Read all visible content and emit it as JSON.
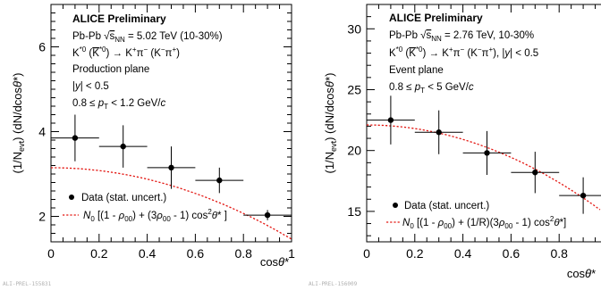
{
  "chart_data": [
    {
      "type": "scatter",
      "xlabel": "cosθ*",
      "ylabel": "(1/N_evt) (dN/dcosθ*)",
      "xlim": [
        0,
        1
      ],
      "ylim": [
        1.4,
        7.0
      ],
      "xticks": [
        0,
        0.2,
        0.4,
        0.6,
        0.8,
        1
      ],
      "xtick_labels": [
        "0",
        "0.2",
        "0.4",
        "0.6",
        "0.8",
        "1"
      ],
      "yticks": [
        2,
        4,
        6
      ],
      "ytick_labels": [
        "2",
        "4",
        "6"
      ],
      "title": "ALICE Preliminary",
      "annotations": [
        "Pb-Pb √sNN = 5.02 TeV (10-30%)",
        "K*0 (K̄*0) → K+π− (K−π+)",
        "Production plane",
        "|y| < 0.5",
        "0.8 ≤ pT < 1.2 GeV/c"
      ],
      "series": [
        {
          "name": "Data (stat. uncert.)",
          "x": [
            0.1,
            0.3,
            0.5,
            0.7,
            0.9
          ],
          "xerr": [
            0.1,
            0.1,
            0.1,
            0.1,
            0.1
          ],
          "y": [
            3.85,
            3.65,
            3.15,
            2.85,
            2.03
          ],
          "yerr": [
            0.55,
            0.5,
            0.5,
            0.3,
            0.12
          ]
        },
        {
          "name": "N0 [(1 - ρ00) + (3ρ00 - 1) cos²θ* ]",
          "fit": {
            "N0": 3.88,
            "rho00": 0.1886
          }
        }
      ],
      "legend_position": "bottom-left",
      "footer": "ALI-PREL-155831"
    },
    {
      "type": "scatter",
      "xlabel": "cosθ*",
      "ylabel": "(1/N_evt) (dN/dcosθ*)",
      "xlim": [
        0,
        1
      ],
      "ylim": [
        12.5,
        32.0
      ],
      "xticks": [
        0,
        0.2,
        0.4,
        0.6,
        0.8
      ],
      "xtick_labels": [
        "0",
        "0.2",
        "0.4",
        "0.6",
        "0.8"
      ],
      "yticks": [
        15,
        20,
        25,
        30
      ],
      "ytick_labels": [
        "15",
        "20",
        "25",
        "30"
      ],
      "title": "ALICE Preliminary",
      "annotations": [
        "Pb-Pb √sNN = 2.76 TeV, 10-30%",
        "K*0 (K̄*0) → K+π− (K−π+), |y| < 0.5",
        "Event plane",
        "0.8 ≤ pT < 5 GeV/c"
      ],
      "series": [
        {
          "name": "Data (stat. uncert.)",
          "x": [
            0.1,
            0.3,
            0.5,
            0.7,
            0.9
          ],
          "xerr": [
            0.1,
            0.1,
            0.1,
            0.1,
            0.1
          ],
          "y": [
            22.5,
            21.5,
            19.8,
            18.2,
            16.3
          ],
          "yerr": [
            2.0,
            1.8,
            1.8,
            1.7,
            1.5
          ]
        },
        {
          "name": "N0 [(1 - ρ00) + (1/R)(3ρ00 - 1) cos²θ* ]",
          "fit": {
            "N0": 22.1,
            "coef": -7.4
          }
        }
      ],
      "legend_position": "bottom-left",
      "footer": "ALI-PREL-156009"
    }
  ],
  "text": {
    "p1": {
      "ylabel": "(1/Nevt) (dN/dcosθ*)",
      "xlabel": "cosθ*",
      "title": "ALICE Preliminary",
      "l1a": "Pb-Pb ",
      "l1b": "s",
      "l1c": "NN",
      "l1d": " = 5.02 TeV (10-30%)",
      "l2": "K*0 (K̄*0) → K+π− (K−π+)",
      "l3": "Production plane",
      "l4": "|y| < 0.5",
      "l5": "0.8 ≤ pT < 1.2 GeV/c",
      "leg1": "Data (stat. uncert.)",
      "leg2": "N0 [(1 - ρ00) + (3ρ00 - 1) cos²θ* ]",
      "footer": "ALI-PREL-155831"
    },
    "p2": {
      "ylabel": "(1/Nevt) (dN/dcosθ*)",
      "xlabel": "cosθ*",
      "title": "ALICE Preliminary",
      "l1a": "Pb-Pb ",
      "l1b": "s",
      "l1c": "NN",
      "l1d": " = 2.76 TeV, 10-30%",
      "l2": "K*0 (K̄*0) → K+π− (K−π+), |y| < 0.5",
      "l3": "Event plane",
      "l4": "0.8 ≤ pT < 5 GeV/c",
      "leg1": "Data (stat. uncert.)",
      "leg2": "N0 [(1 - ρ00) + (1/R)(3ρ00 - 1) cos²θ* ]",
      "footer": "ALI-PREL-156009"
    }
  }
}
